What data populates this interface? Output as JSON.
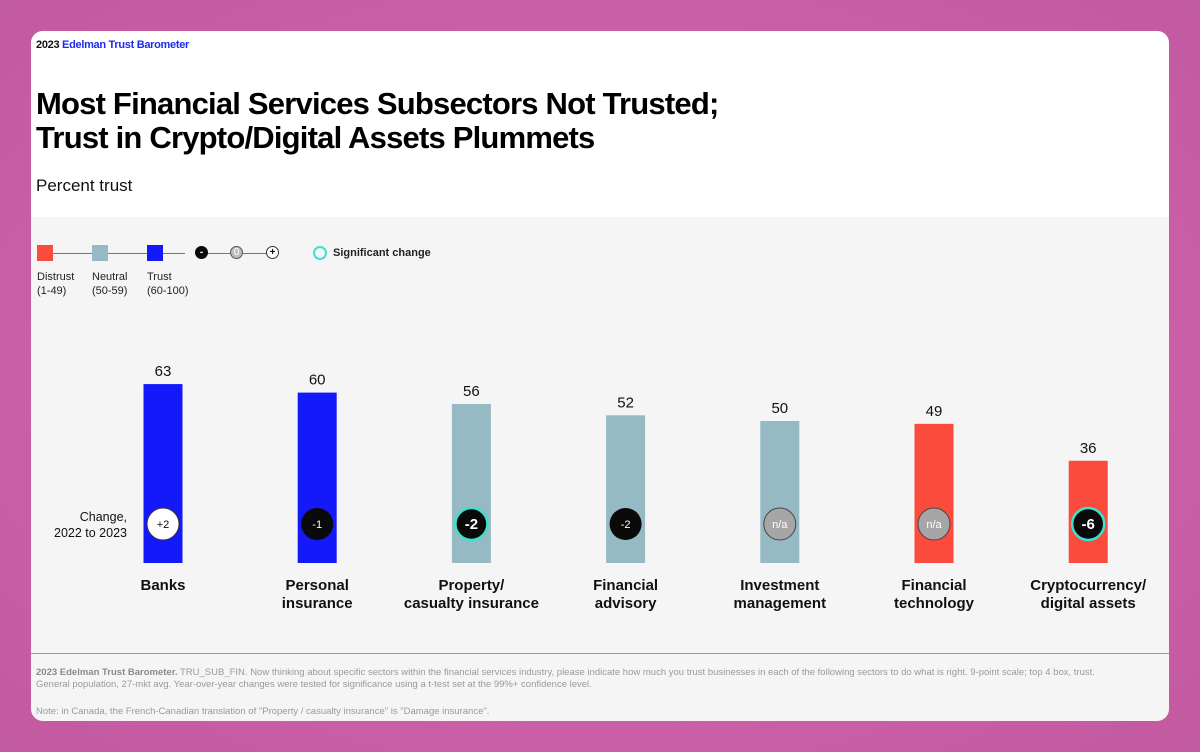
{
  "header": {
    "brand_year": "2023",
    "brand_name": "Edelman Trust Barometer",
    "title_line1": "Most Financial Services Subsectors Not Trusted;",
    "title_line2": "Trust in Crypto/Digital Assets Plummets",
    "subtitle": "Percent trust"
  },
  "legend": {
    "distrust": "Distrust",
    "distrust_range": "(1-49)",
    "neutral": "Neutral",
    "neutral_range": "(50-59)",
    "trust": "Trust",
    "trust_range": "(60-100)",
    "minus": "-",
    "zero": "0",
    "plus": "+",
    "significant": "Significant change"
  },
  "colors": {
    "distrust": "#fa4b3c",
    "neutral": "#96bac4",
    "trust": "#1419fa",
    "significant_ring": "#3ee0cc",
    "change_negative": "#0a0a0a",
    "change_positive": "#ffffff",
    "change_na": "#a6a6a6"
  },
  "chart_data": {
    "type": "bar",
    "title": "Most Financial Services Subsectors Not Trusted; Trust in Crypto/Digital Assets Plummets",
    "ylabel": "Percent trust",
    "ylim": [
      0,
      100
    ],
    "grid": false,
    "legend_placement": "top-left",
    "change_label_line1": "Change,",
    "change_label_line2": "2022 to 2023",
    "categories": [
      [
        "Banks"
      ],
      [
        "Personal",
        "insurance"
      ],
      [
        "Property/",
        "casualty insurance"
      ],
      [
        "Financial",
        "advisory"
      ],
      [
        "Investment",
        "management"
      ],
      [
        "Financial",
        "technology"
      ],
      [
        "Cryptocurrency/",
        "digital assets"
      ]
    ],
    "values": [
      63,
      60,
      56,
      52,
      50,
      49,
      36
    ],
    "value_labels": [
      "63",
      "60",
      "56",
      "52",
      "50",
      "49",
      "36"
    ],
    "level": [
      "trust",
      "trust",
      "neutral",
      "neutral",
      "neutral",
      "distrust",
      "distrust"
    ],
    "change": [
      "+2",
      "-1",
      "-2",
      "-2",
      "n/a",
      "n/a",
      "-6"
    ],
    "change_kind": [
      "positive",
      "negative",
      "negative",
      "negative",
      "na",
      "na",
      "negative"
    ],
    "significant": [
      false,
      false,
      true,
      false,
      false,
      false,
      true
    ]
  },
  "footer": {
    "source_bold": "2023 Edelman Trust Barometer.",
    "source_text": " TRU_SUB_FIN. Now thinking about specific sectors within the financial services industry, please indicate how much you trust businesses in each of the following sectors to do what is right. 9-point scale; top 4 box, trust. General population, 27-mkt avg. Year-over-year changes were tested for significance using a t-test set at the 99%+ confidence level.",
    "note": "Note: in Canada, the French-Canadian translation of \"Property / casualty insurance\" is \"Damage insurance\"."
  }
}
